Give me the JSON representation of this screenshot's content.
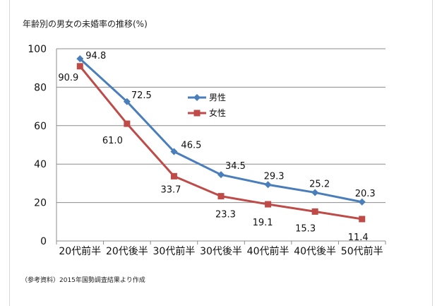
{
  "title": "年齢別の男女の未婚率の推移(%)",
  "note": "（参考資料）2015年国勢調査結果より作成",
  "chart_data": {
    "type": "line",
    "categories": [
      "20代前半",
      "20代後半",
      "30代前半",
      "30代後半",
      "40代前半",
      "40代後半",
      "50代前半"
    ],
    "series": [
      {
        "name": "男性",
        "values": [
          94.8,
          72.5,
          46.5,
          34.5,
          29.3,
          25.2,
          20.3
        ],
        "color": "#4a7ebb"
      },
      {
        "name": "女性",
        "values": [
          90.9,
          61.0,
          33.7,
          23.3,
          19.1,
          15.3,
          11.4
        ],
        "color": "#be4b48"
      }
    ],
    "ylim": [
      0,
      100
    ],
    "yticks": [
      0,
      20,
      40,
      60,
      80,
      100
    ],
    "grid": true,
    "legend": "center-right"
  }
}
